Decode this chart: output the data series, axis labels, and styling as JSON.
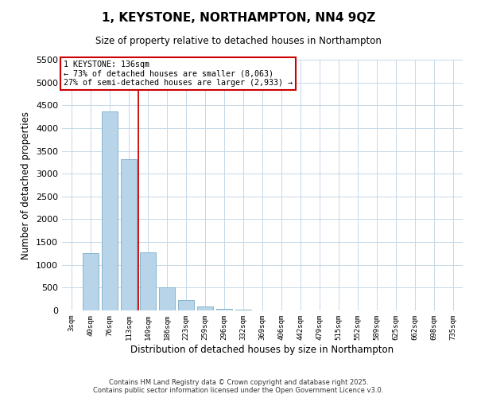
{
  "title": "1, KEYSTONE, NORTHAMPTON, NN4 9QZ",
  "subtitle": "Size of property relative to detached houses in Northampton",
  "xlabel": "Distribution of detached houses by size in Northampton",
  "ylabel": "Number of detached properties",
  "bar_labels": [
    "3sqm",
    "40sqm",
    "76sqm",
    "113sqm",
    "149sqm",
    "186sqm",
    "223sqm",
    "259sqm",
    "296sqm",
    "332sqm",
    "369sqm",
    "406sqm",
    "442sqm",
    "479sqm",
    "515sqm",
    "552sqm",
    "589sqm",
    "625sqm",
    "662sqm",
    "698sqm",
    "735sqm"
  ],
  "bar_values": [
    0,
    1260,
    4360,
    3320,
    1280,
    500,
    230,
    80,
    30,
    10,
    5,
    2,
    1,
    0,
    0,
    0,
    0,
    0,
    0,
    0,
    0
  ],
  "bar_color": "#b8d4e8",
  "bar_edge_color": "#7aafc8",
  "vline_color": "#cc0000",
  "vline_x": 3.5,
  "annotation_text_line1": "1 KEYSTONE: 136sqm",
  "annotation_text_line2": "← 73% of detached houses are smaller (8,063)",
  "annotation_text_line3": "27% of semi-detached houses are larger (2,933) →",
  "ylim": [
    0,
    5500
  ],
  "yticks": [
    0,
    500,
    1000,
    1500,
    2000,
    2500,
    3000,
    3500,
    4000,
    4500,
    5000,
    5500
  ],
  "background_color": "#ffffff",
  "grid_color": "#c5d8e8",
  "footer_line1": "Contains HM Land Registry data © Crown copyright and database right 2025.",
  "footer_line2": "Contains public sector information licensed under the Open Government Licence v3.0."
}
